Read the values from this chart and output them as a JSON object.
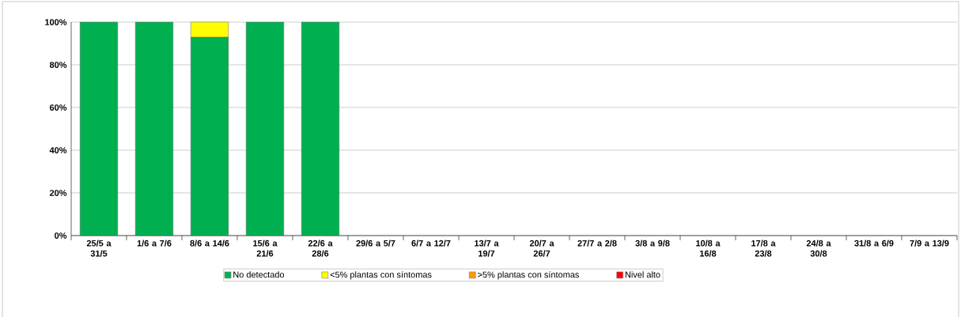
{
  "chart_data": {
    "type": "bar",
    "stacked": true,
    "categories": [
      "25/5 a 31/5",
      "1/6 a 7/6",
      "8/6 a 14/6",
      "15/6 a 21/6",
      "22/6 a 28/6",
      "29/6 a 5/7",
      "6/7 a 12/7",
      "13/7 a 19/7",
      "20/7 a 26/7",
      "27/7 a 2/8",
      "3/8 a 9/8",
      "10/8 a 16/8",
      "17/8 a 23/8",
      "24/8 a 30/8",
      "31/8 a 6/9",
      "7/9 a 13/9"
    ],
    "series": [
      {
        "name": "No detectado",
        "color": "#00b050",
        "values": [
          100,
          100,
          93,
          100,
          100,
          null,
          null,
          null,
          null,
          null,
          null,
          null,
          null,
          null,
          null,
          null
        ]
      },
      {
        "name": "<5% plantas con síntomas",
        "color": "#ffff00",
        "values": [
          null,
          null,
          7,
          null,
          null,
          null,
          null,
          null,
          null,
          null,
          null,
          null,
          null,
          null,
          null,
          null
        ]
      },
      {
        "name": ">5% plantas con síntomas",
        "color": "#ff9900",
        "values": [
          null,
          null,
          null,
          null,
          null,
          null,
          null,
          null,
          null,
          null,
          null,
          null,
          null,
          null,
          null,
          null
        ]
      },
      {
        "name": "Nivel alto",
        "color": "#ff0000",
        "values": [
          null,
          null,
          null,
          null,
          null,
          null,
          null,
          null,
          null,
          null,
          null,
          null,
          null,
          null,
          null,
          null
        ]
      }
    ],
    "ylim": [
      0,
      100
    ],
    "yticks": [
      {
        "value": 0,
        "label": "0%"
      },
      {
        "value": 20,
        "label": "20%"
      },
      {
        "value": 40,
        "label": "40%"
      },
      {
        "value": 60,
        "label": "60%"
      },
      {
        "value": 80,
        "label": "80%"
      },
      {
        "value": 100,
        "label": "100%"
      }
    ],
    "grid": "y",
    "legend": "bottom"
  }
}
